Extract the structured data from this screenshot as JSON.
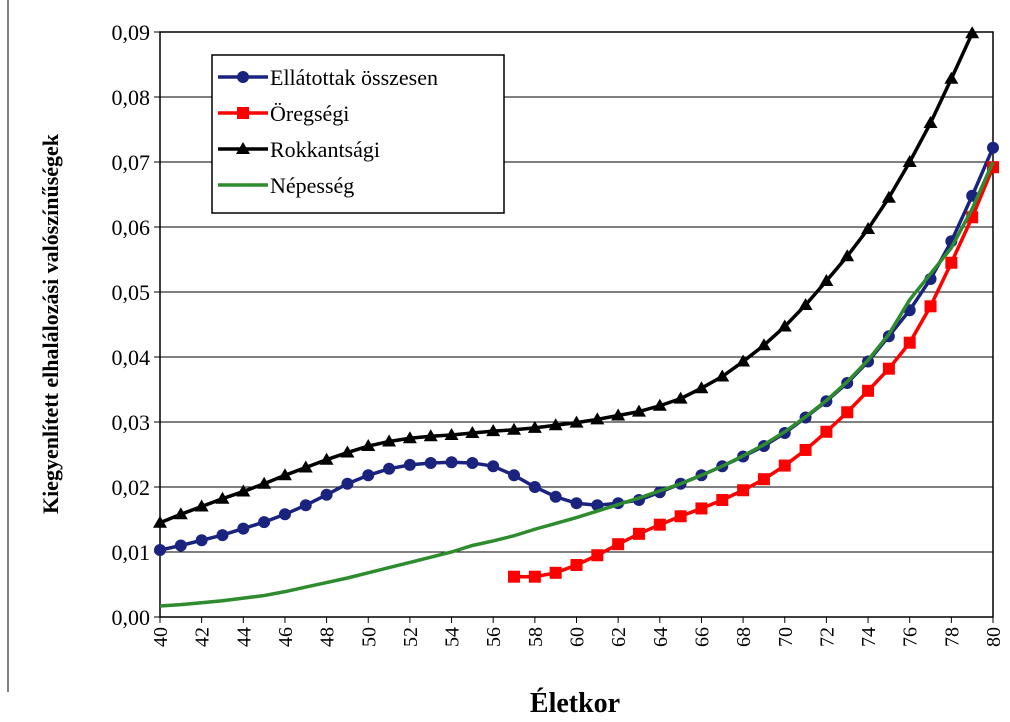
{
  "chart_data": {
    "type": "line",
    "xlabel": "Életkor",
    "ylabel": "Kiegyenlített elhalálozási valószínűségek",
    "x": [
      40,
      41,
      42,
      43,
      44,
      45,
      46,
      47,
      48,
      49,
      50,
      51,
      52,
      53,
      54,
      55,
      56,
      57,
      58,
      59,
      60,
      61,
      62,
      63,
      64,
      65,
      66,
      67,
      68,
      69,
      70,
      71,
      72,
      73,
      74,
      75,
      76,
      77,
      78,
      79,
      80
    ],
    "series": [
      {
        "name": "Ellátottak összesen",
        "color": "#1a237e",
        "marker": "circle",
        "values": [
          0.0103,
          0.011,
          0.0118,
          0.0126,
          0.0136,
          0.0146,
          0.0158,
          0.0172,
          0.0188,
          0.0205,
          0.0218,
          0.0228,
          0.0234,
          0.0237,
          0.0238,
          0.0237,
          0.0232,
          0.0218,
          0.02,
          0.0185,
          0.0175,
          0.0172,
          0.0175,
          0.018,
          0.0192,
          0.0205,
          0.0218,
          0.0232,
          0.0247,
          0.0263,
          0.0283,
          0.0307,
          0.0332,
          0.036,
          0.0393,
          0.0432,
          0.0472,
          0.052,
          0.0578,
          0.0648,
          0.0722
        ]
      },
      {
        "name": "Öregségi",
        "color": "#ff0000",
        "marker": "square",
        "values": [
          null,
          null,
          null,
          null,
          null,
          null,
          null,
          null,
          null,
          null,
          null,
          null,
          null,
          null,
          null,
          null,
          null,
          0.0062,
          0.0062,
          0.0068,
          0.008,
          0.0095,
          0.0112,
          0.0128,
          0.0142,
          0.0155,
          0.0167,
          0.018,
          0.0195,
          0.0212,
          0.0233,
          0.0257,
          0.0285,
          0.0315,
          0.0348,
          0.0382,
          0.0422,
          0.0478,
          0.0545,
          0.0615,
          0.0692
        ]
      },
      {
        "name": "Rokkantsági",
        "color": "#000000",
        "marker": "triangle",
        "values": [
          0.0145,
          0.0158,
          0.017,
          0.0182,
          0.0193,
          0.0205,
          0.0218,
          0.023,
          0.0242,
          0.0253,
          0.0263,
          0.027,
          0.0275,
          0.0278,
          0.028,
          0.0283,
          0.0286,
          0.0288,
          0.0291,
          0.0295,
          0.0299,
          0.0304,
          0.031,
          0.0316,
          0.0325,
          0.0336,
          0.0352,
          0.037,
          0.0393,
          0.0418,
          0.0447,
          0.048,
          0.0517,
          0.0555,
          0.0597,
          0.0645,
          0.07,
          0.076,
          0.0828,
          0.0898,
          null
        ]
      },
      {
        "name": "Népesség",
        "color": "#2e8b2e",
        "marker": null,
        "values": [
          0.0017,
          0.0019,
          0.0022,
          0.0025,
          0.0029,
          0.0033,
          0.0039,
          0.0046,
          0.0053,
          0.006,
          0.0068,
          0.0076,
          0.0084,
          0.0092,
          0.01,
          0.011,
          0.0117,
          0.0125,
          0.0135,
          0.0144,
          0.0153,
          0.0163,
          0.0173,
          0.0183,
          0.0194,
          0.0205,
          0.0218,
          0.0232,
          0.0248,
          0.0265,
          0.0285,
          0.0308,
          0.0333,
          0.0362,
          0.0395,
          0.0435,
          0.0488,
          0.0528,
          0.0568,
          0.0628,
          0.07
        ]
      }
    ],
    "xlim": [
      40,
      80
    ],
    "xticks": [
      40,
      42,
      44,
      46,
      48,
      50,
      52,
      54,
      56,
      58,
      60,
      62,
      64,
      66,
      68,
      70,
      72,
      74,
      76,
      78,
      80
    ],
    "ylim": [
      0,
      0.09
    ],
    "yticks": [
      {
        "value": 0,
        "label": "0,00"
      },
      {
        "value": 0.01,
        "label": "0,01"
      },
      {
        "value": 0.02,
        "label": "0,02"
      },
      {
        "value": 0.03,
        "label": "0,03"
      },
      {
        "value": 0.04,
        "label": "0,04"
      },
      {
        "value": 0.05,
        "label": "0,05"
      },
      {
        "value": 0.06,
        "label": "0,06"
      },
      {
        "value": 0.07,
        "label": "0,07"
      },
      {
        "value": 0.08,
        "label": "0,08"
      },
      {
        "value": 0.09,
        "label": "0,09"
      }
    ],
    "grid": true,
    "legend": "upper-left"
  }
}
